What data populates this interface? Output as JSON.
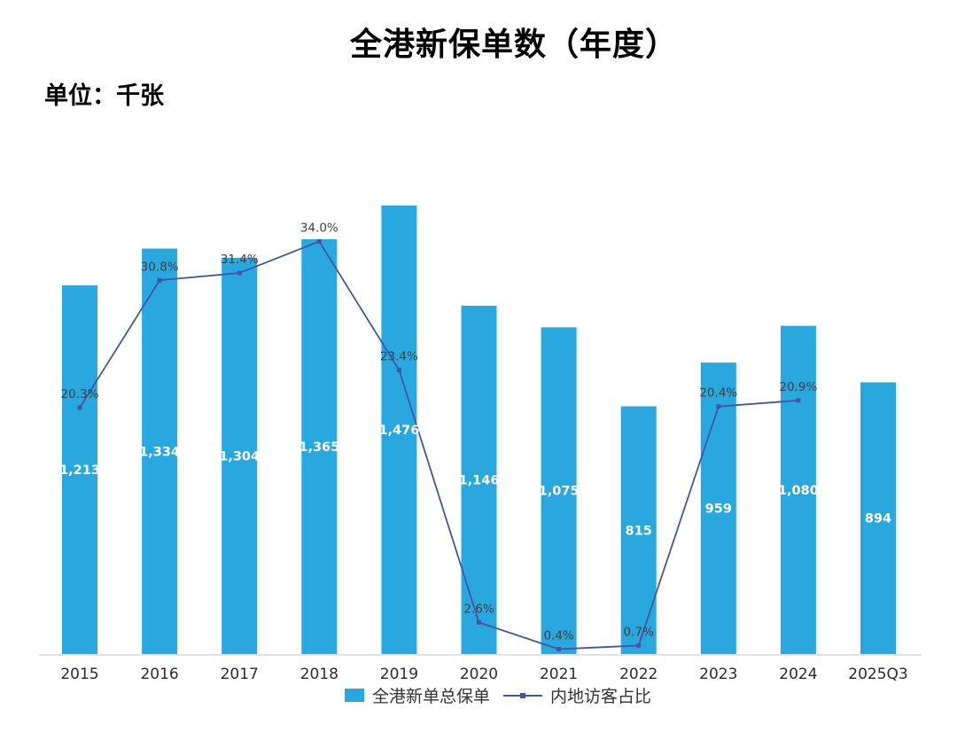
{
  "page": {
    "title": "全港新保单数（年度）",
    "unit_label": "单位：千张"
  },
  "chart_data": {
    "type": "bar",
    "subtype": "combo-bar-line",
    "title": "全港新保单数（年度）",
    "unit": "千张",
    "categories": [
      "2015",
      "2016",
      "2017",
      "2018",
      "2019",
      "2020",
      "2021",
      "2022",
      "2023",
      "2024",
      "2025Q3"
    ],
    "series": [
      {
        "name": "全港新单总保单",
        "type": "bar",
        "axis": "y1",
        "values": [
          1213,
          1334,
          1304,
          1365,
          1476,
          1146,
          1075,
          815,
          959,
          1080,
          894
        ],
        "labels": [
          "1,213",
          "1,334",
          "1,304",
          "1,365",
          "1,476",
          "1,146",
          "1,075",
          "815",
          "959",
          "1,080",
          "894"
        ],
        "color": "#29A8E0"
      },
      {
        "name": "内地访客占比",
        "type": "line",
        "axis": "y2",
        "values": [
          20.3,
          30.8,
          31.4,
          34.0,
          23.4,
          2.6,
          0.4,
          0.7,
          20.4,
          20.9,
          null
        ],
        "labels": [
          "20.3%",
          "30.8%",
          "31.4%",
          "34.0%",
          "23.4%",
          "2.6%",
          "0.4%",
          "0.7%",
          "20.4%",
          "20.9%",
          null
        ],
        "color": "#4355A8"
      }
    ],
    "y1lim": [
      0,
      1633
    ],
    "y2lim": [
      0,
      40.9
    ],
    "grid": false,
    "legend_position": "bottom",
    "colors": {
      "bar_label_color": "#FFFFFF",
      "pct_label_color": "#3F3F3F",
      "x_label_color": "#2B2B2B",
      "axis_line_color": "#D9D9D9",
      "legend_text_color": "#333333"
    }
  }
}
